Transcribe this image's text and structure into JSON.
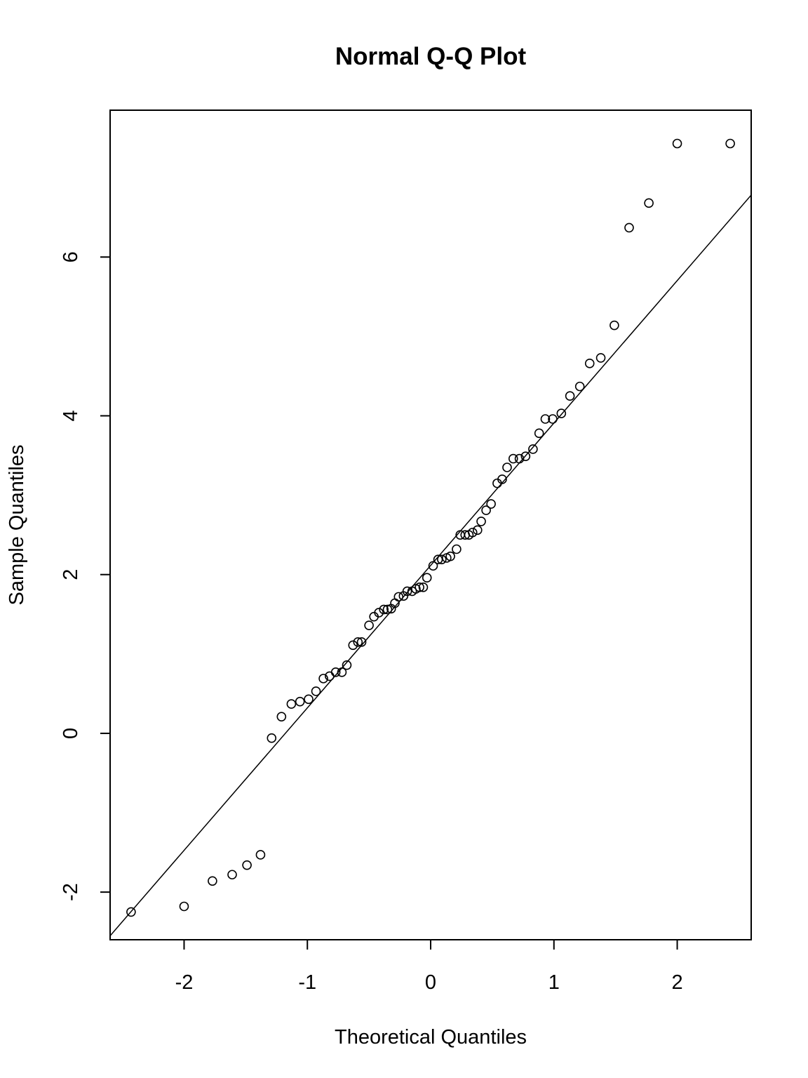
{
  "chart_data": {
    "type": "scatter",
    "title": "Normal Q-Q Plot",
    "xlabel": "Theoretical Quantiles",
    "ylabel": "Sample Quantiles",
    "xlim": [
      -2.6,
      2.6
    ],
    "ylim": [
      -2.6,
      7.85
    ],
    "xticks": [
      -2,
      -1,
      0,
      1,
      2
    ],
    "xtick_labels": [
      "-2",
      "-1",
      "0",
      "1",
      "2"
    ],
    "yticks": [
      -2,
      0,
      2,
      4,
      6
    ],
    "ytick_labels": [
      "-2",
      "0",
      "2",
      "4",
      "6"
    ],
    "grid": false,
    "reference_line": {
      "points": [
        [
          -2.6,
          -2.55
        ],
        [
          2.6,
          6.78
        ]
      ]
    },
    "points": {
      "x": [
        -2.43,
        -2.0,
        -1.77,
        -1.61,
        -1.49,
        -1.38,
        -1.29,
        -1.21,
        -1.13,
        -1.06,
        -0.99,
        -0.93,
        -0.87,
        -0.82,
        -0.77,
        -0.72,
        -0.68,
        -0.63,
        -0.59,
        -0.56,
        -0.5,
        -0.46,
        -0.42,
        -0.38,
        -0.35,
        -0.32,
        -0.29,
        -0.26,
        -0.22,
        -0.19,
        -0.15,
        -0.12,
        -0.09,
        -0.06,
        -0.03,
        0.02,
        0.06,
        0.09,
        0.13,
        0.16,
        0.21,
        0.24,
        0.28,
        0.31,
        0.34,
        0.38,
        0.41,
        0.45,
        0.49,
        0.54,
        0.58,
        0.62,
        0.67,
        0.72,
        0.77,
        0.83,
        0.88,
        0.93,
        0.99,
        1.06,
        1.13,
        1.21,
        1.29,
        1.38,
        1.49,
        1.61,
        1.77,
        2.0,
        2.43
      ],
      "y": [
        -2.25,
        -2.18,
        -1.86,
        -1.78,
        -1.66,
        -1.53,
        -0.06,
        0.21,
        0.37,
        0.4,
        0.43,
        0.53,
        0.69,
        0.72,
        0.77,
        0.77,
        0.86,
        1.11,
        1.15,
        1.15,
        1.36,
        1.47,
        1.52,
        1.56,
        1.56,
        1.57,
        1.64,
        1.72,
        1.73,
        1.79,
        1.79,
        1.82,
        1.84,
        1.84,
        1.96,
        2.11,
        2.19,
        2.19,
        2.21,
        2.23,
        2.32,
        2.5,
        2.5,
        2.5,
        2.53,
        2.56,
        2.67,
        2.81,
        2.89,
        3.15,
        3.2,
        3.35,
        3.46,
        3.46,
        3.49,
        3.58,
        3.78,
        3.96,
        3.96,
        4.03,
        4.25,
        4.37,
        4.66,
        4.73,
        5.14,
        6.37,
        6.68,
        7.43,
        7.43
      ]
    }
  }
}
